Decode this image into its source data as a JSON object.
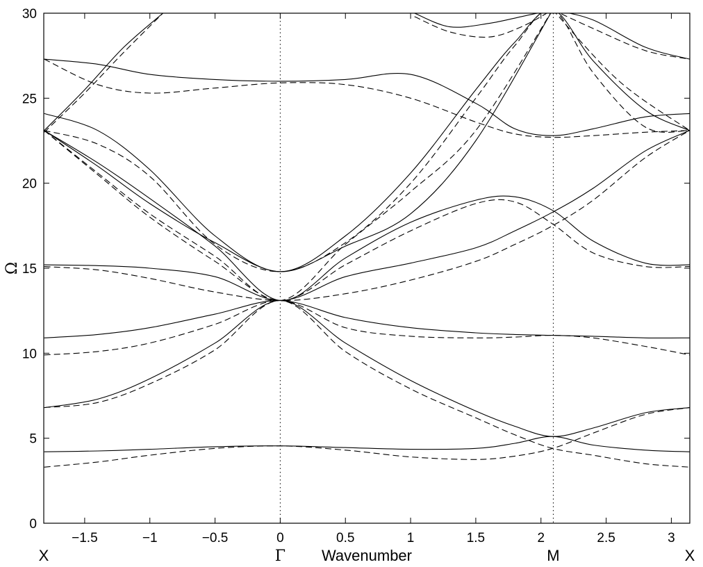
{
  "chart_data": {
    "type": "line",
    "title": "",
    "xlabel": "Wavenumber",
    "ylabel": "Ω",
    "xlim": [
      -1.8138,
      3.1416
    ],
    "ylim": [
      0,
      30
    ],
    "x_ticks": [
      -1.5,
      -1,
      -0.5,
      0,
      0.5,
      1,
      1.5,
      2,
      2.5,
      3
    ],
    "x_tick_labels": [
      "−1.5",
      "−1",
      "−0.5",
      "0",
      "0.5",
      "1",
      "1.5",
      "2",
      "2.5",
      "3"
    ],
    "y_ticks": [
      0,
      5,
      10,
      15,
      20,
      25,
      30
    ],
    "y_tick_labels": [
      "0",
      "5",
      "10",
      "15",
      "20",
      "25",
      "30"
    ],
    "symmetry_points": [
      {
        "label": "X",
        "x": -1.8138
      },
      {
        "label": "Γ",
        "x": 0
      },
      {
        "label": "M",
        "x": 2.0944
      },
      {
        "label": "X",
        "x": 3.1416
      }
    ],
    "vertical_reference_lines": [
      0,
      2.0944
    ],
    "grid": false,
    "legend": "none",
    "series": [
      {
        "style": "solid",
        "x": [
          -1.81,
          -1.4,
          -1.0,
          -0.5,
          0,
          0.5,
          1.0,
          1.5,
          1.8,
          2.09,
          2.4,
          2.8,
          3.14
        ],
        "y": [
          4.2,
          4.25,
          4.35,
          4.5,
          4.55,
          4.45,
          4.35,
          4.4,
          4.7,
          5.1,
          4.6,
          4.3,
          4.2
        ]
      },
      {
        "style": "solid",
        "x": [
          -1.81,
          -1.4,
          -1.0,
          -0.5,
          0,
          0.5,
          1.0,
          1.5,
          1.8,
          2.09,
          2.4,
          2.8,
          3.14
        ],
        "y": [
          6.8,
          7.3,
          8.5,
          10.6,
          13.1,
          10.6,
          8.4,
          6.6,
          5.7,
          5.1,
          5.6,
          6.5,
          6.8
        ]
      },
      {
        "style": "solid",
        "x": [
          -1.81,
          -1.4,
          -1.0,
          -0.5,
          0,
          0.5,
          1.0,
          1.5,
          1.8,
          2.09,
          2.4,
          2.8,
          3.14
        ],
        "y": [
          10.9,
          11.1,
          11.5,
          12.3,
          13.1,
          12.1,
          11.5,
          11.2,
          11.1,
          11.05,
          11.0,
          10.9,
          10.9
        ]
      },
      {
        "style": "solid",
        "x": [
          -1.81,
          -1.4,
          -1.0,
          -0.5,
          0,
          0.5,
          1.0,
          1.5,
          1.8,
          2.09,
          2.4,
          2.8,
          3.14
        ],
        "y": [
          15.2,
          15.15,
          15.0,
          14.5,
          13.1,
          14.5,
          15.3,
          16.2,
          17.2,
          18.3,
          19.7,
          21.9,
          23.1
        ]
      },
      {
        "style": "solid",
        "x": [
          -1.81,
          -1.4,
          -1.0,
          -0.5,
          0,
          0.5,
          1.0,
          1.5,
          1.8,
          2.09,
          2.4,
          2.8,
          3.14
        ],
        "y": [
          23.1,
          21.2,
          19.1,
          16.3,
          13.1,
          15.6,
          17.7,
          19.0,
          19.2,
          18.4,
          16.6,
          15.3,
          15.2
        ]
      },
      {
        "style": "solid",
        "x": [
          -1.81,
          -1.4,
          -1.0,
          -0.5,
          0,
          0.5,
          1.0,
          1.5,
          1.8,
          2.09,
          2.4,
          2.8,
          3.14
        ],
        "y": [
          24.1,
          23.1,
          20.8,
          16.9,
          14.8,
          16.9,
          20.6,
          25.5,
          28.3,
          30.2,
          27.2,
          24.3,
          23.1
        ]
      },
      {
        "style": "solid",
        "x": [
          -1.81,
          -1.4,
          -1.0,
          -0.5,
          0,
          0.5,
          1.0,
          1.5,
          1.8,
          2.09,
          2.4,
          2.8,
          3.14
        ],
        "y": [
          27.3,
          27.0,
          26.4,
          26.1,
          26.0,
          26.1,
          26.4,
          24.7,
          23.2,
          22.8,
          23.2,
          23.9,
          24.1
        ]
      },
      {
        "style": "solid",
        "x": [
          -1.81,
          -1.5,
          -1.2,
          -0.9
        ],
        "y": [
          23.1,
          25.5,
          28.0,
          30.0
        ]
      },
      {
        "style": "solid",
        "x": [
          -1.81,
          -1.4,
          -1.0,
          -0.5,
          0,
          0.5,
          1.0,
          1.5,
          2.09
        ],
        "y": [
          23.1,
          21.0,
          18.8,
          16.5,
          14.8,
          16.3,
          18.2,
          22.5,
          30.2
        ]
      },
      {
        "style": "solid",
        "x": [
          1.03,
          1.3,
          1.6,
          1.85,
          2.09
        ],
        "y": [
          30.0,
          29.2,
          29.4,
          29.8,
          30.2
        ]
      },
      {
        "style": "solid",
        "x": [
          2.09,
          2.4,
          2.8,
          3.14
        ],
        "y": [
          30.2,
          29.6,
          28.0,
          27.3
        ]
      },
      {
        "style": "dashed",
        "x": [
          -1.81,
          -1.4,
          -1.0,
          -0.5,
          0,
          0.5,
          1.0,
          1.5,
          1.8,
          2.09,
          2.4,
          2.8,
          3.14
        ],
        "y": [
          3.3,
          3.6,
          4.0,
          4.4,
          4.55,
          4.3,
          3.9,
          3.75,
          3.95,
          4.4,
          5.3,
          6.4,
          6.8
        ]
      },
      {
        "style": "dashed",
        "x": [
          -1.81,
          -1.4,
          -1.0,
          -0.5,
          0,
          0.5,
          1.0,
          1.5,
          1.8,
          2.09,
          2.4,
          2.8,
          3.14
        ],
        "y": [
          6.8,
          7.1,
          8.2,
          10.2,
          13.1,
          10.1,
          7.9,
          6.2,
          5.2,
          4.4,
          4.0,
          3.5,
          3.3
        ]
      },
      {
        "style": "dashed",
        "x": [
          -1.81,
          -1.4,
          -1.0,
          -0.5,
          0,
          0.5,
          1.0,
          1.5,
          1.8,
          2.09,
          2.4,
          2.8,
          3.14
        ],
        "y": [
          9.9,
          10.1,
          10.6,
          11.7,
          13.1,
          11.5,
          11.0,
          10.9,
          10.95,
          11.05,
          10.9,
          10.4,
          9.9
        ]
      },
      {
        "style": "dashed",
        "x": [
          -1.81,
          -1.4,
          -1.0,
          -0.5,
          0,
          0.5,
          1.0,
          1.5,
          1.8,
          2.09,
          2.4,
          2.8,
          3.14
        ],
        "y": [
          15.1,
          14.9,
          14.4,
          13.6,
          13.1,
          13.5,
          14.3,
          15.4,
          16.4,
          17.5,
          19.0,
          21.5,
          23.1
        ]
      },
      {
        "style": "dashed",
        "x": [
          -1.81,
          -1.4,
          -1.0,
          -0.5,
          0,
          0.5,
          1.0,
          1.5,
          1.8,
          2.09,
          2.4,
          2.8,
          3.14
        ],
        "y": [
          23.1,
          20.5,
          18.0,
          15.4,
          13.1,
          15.2,
          17.2,
          18.8,
          18.9,
          17.6,
          15.9,
          15.1,
          15.1
        ]
      },
      {
        "style": "dashed",
        "x": [
          -1.81,
          -1.4,
          -1.0,
          -0.5,
          0,
          0.5,
          1.0,
          1.5,
          1.8,
          2.09,
          2.4,
          2.8,
          3.14
        ],
        "y": [
          23.1,
          22.3,
          20.4,
          16.4,
          14.8,
          16.5,
          20.0,
          25.0,
          28.1,
          30.2,
          26.5,
          23.3,
          23.1
        ]
      },
      {
        "style": "dashed",
        "x": [
          -1.81,
          -1.4,
          -1.0,
          -0.5,
          0,
          0.5,
          1.0,
          1.5,
          1.8,
          2.09,
          2.4,
          2.8,
          3.14
        ],
        "y": [
          27.3,
          25.8,
          25.3,
          25.6,
          25.9,
          25.8,
          25.0,
          23.6,
          22.9,
          22.7,
          22.8,
          23.0,
          23.1
        ]
      },
      {
        "style": "dashed",
        "x": [
          -1.81,
          -1.5,
          -1.2,
          -0.9
        ],
        "y": [
          23.0,
          25.3,
          27.7,
          30.0
        ]
      },
      {
        "style": "dashed",
        "x": [
          -1.81,
          -1.4,
          -1.0,
          -0.5,
          0,
          0.5,
          1.0,
          1.5,
          2.09
        ],
        "y": [
          23.1,
          20.6,
          18.2,
          15.7,
          13.1,
          16.4,
          19.5,
          23.1,
          30.2
        ]
      },
      {
        "style": "dashed",
        "x": [
          1.03,
          1.3,
          1.6,
          1.85,
          2.09
        ],
        "y": [
          29.8,
          28.9,
          28.6,
          29.2,
          30.2
        ]
      },
      {
        "style": "dashed",
        "x": [
          2.09,
          2.4,
          2.8,
          3.14
        ],
        "y": [
          30.2,
          29.1,
          27.8,
          27.3
        ]
      },
      {
        "style": "dashed",
        "x": [
          2.09,
          2.6,
          3.14
        ],
        "y": [
          30.2,
          26.0,
          23.1
        ]
      }
    ]
  }
}
